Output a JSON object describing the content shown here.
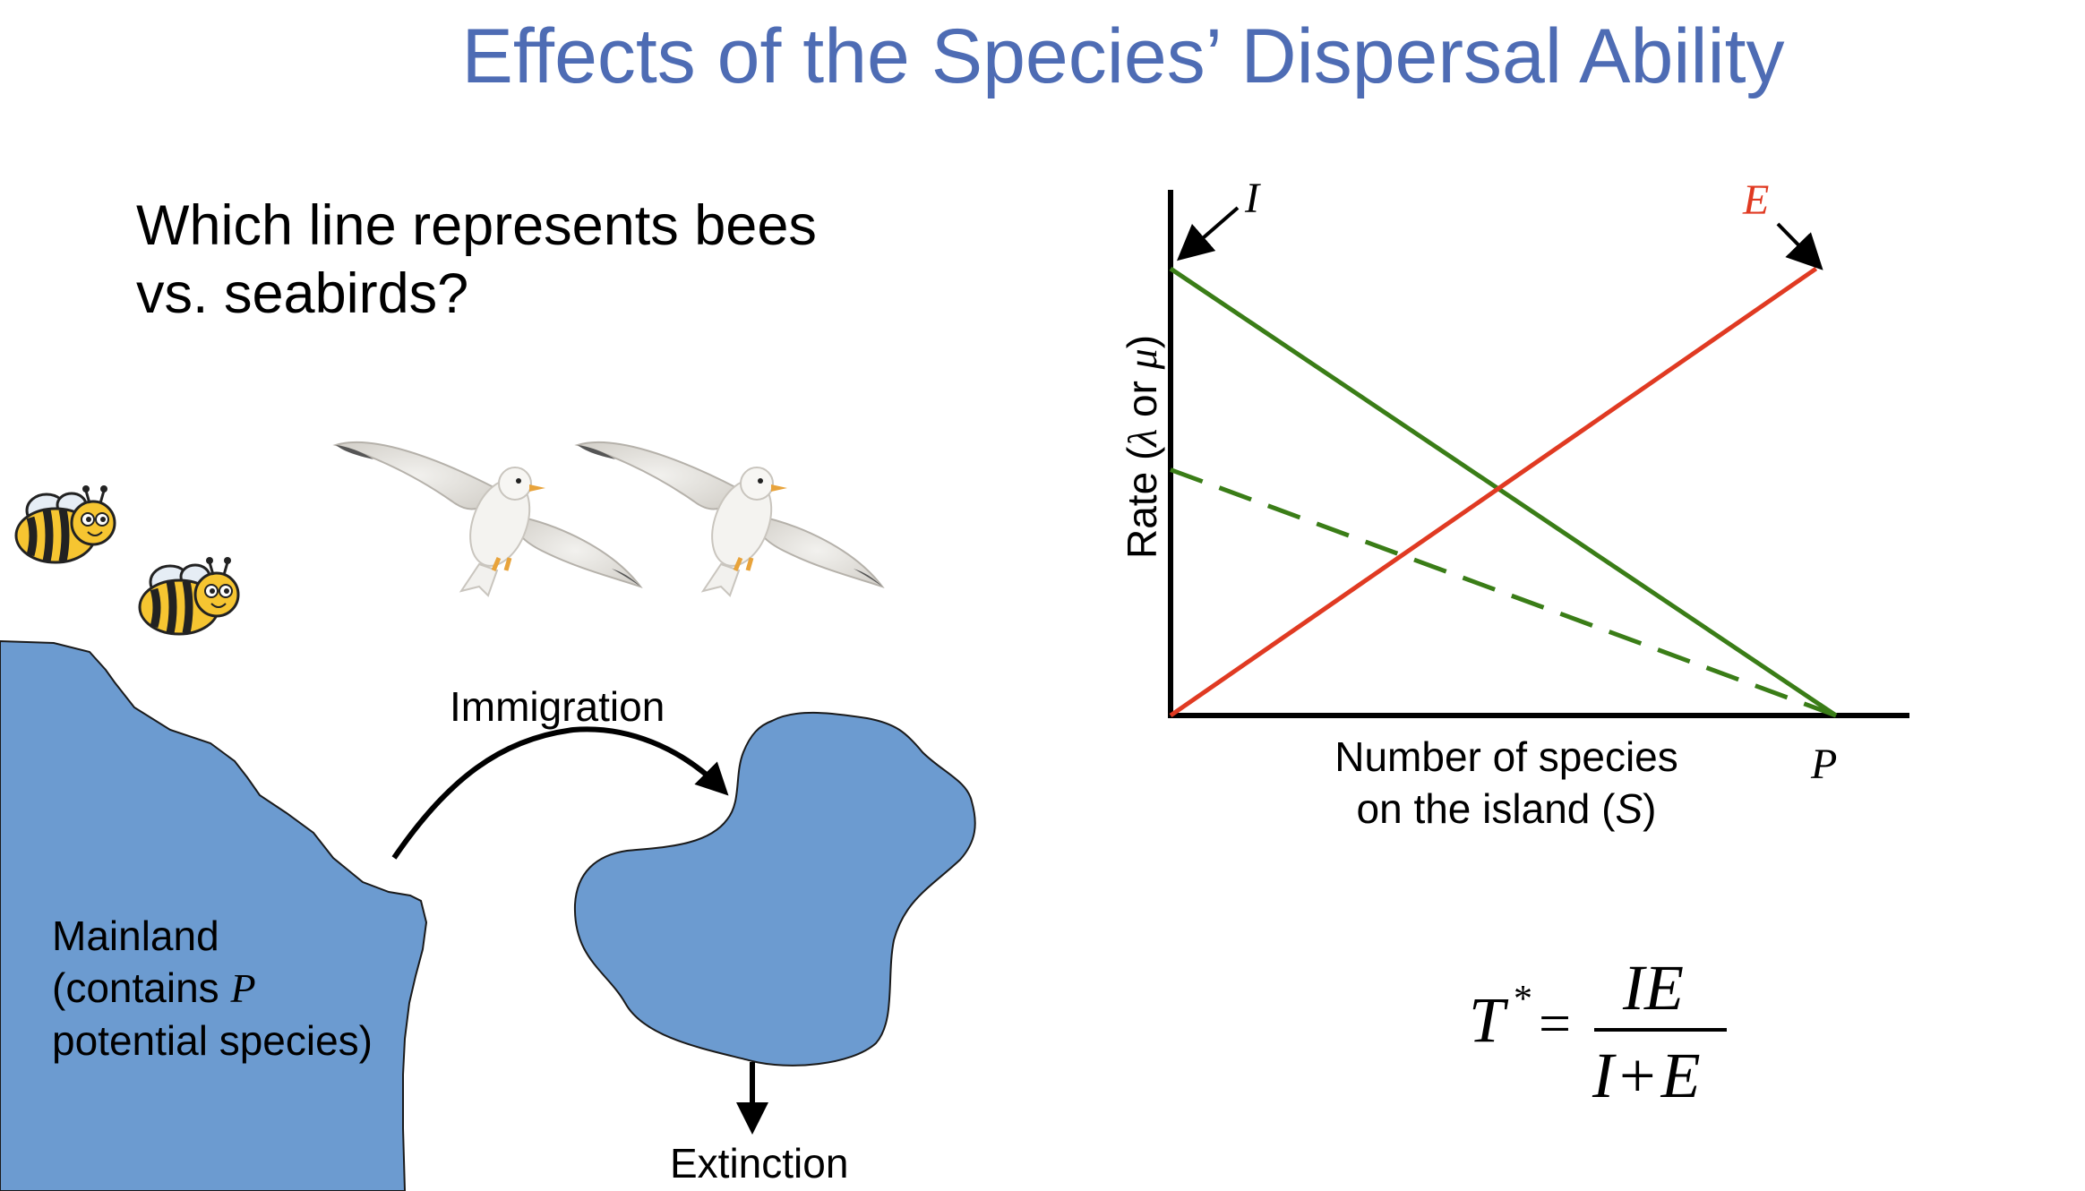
{
  "title": "Effects of the Species’ Dispersal Ability",
  "question": {
    "line1": "Which line represents bees",
    "line2": "vs. seabirds?"
  },
  "diagram": {
    "immigration": "Immigration",
    "extinction": "Extinction",
    "mainland_line1": "Mainland",
    "mainland_line2_pre": "(contains ",
    "mainland_line2_var": "P",
    "mainland_line3": "potential species)",
    "colors": {
      "land": "#6C9BD0",
      "outline": "#1a1a1a"
    }
  },
  "chart": {
    "ylabel_pre": "Rate (",
    "ylabel_lambda": "λ",
    "ylabel_mid": " or ",
    "ylabel_mu": "μ",
    "ylabel_post": ")",
    "xlabel_line1": "Number of species",
    "xlabel_line2_pre": "on the island (",
    "xlabel_line2_var": "S",
    "xlabel_line2_post": ")",
    "label_I": "I",
    "label_E": "E",
    "label_P": "P",
    "colors": {
      "immigration": "#3A7D17",
      "extinction": "#E03A22",
      "axis": "#000000"
    }
  },
  "chart_data": {
    "type": "line",
    "x_range": [
      0,
      1
    ],
    "y_range": [
      0,
      1
    ],
    "series": [
      {
        "values": [
          [
            0,
            1
          ],
          [
            1,
            0
          ]
        ],
        "style": "solid",
        "color": "#3A7D17"
      },
      {
        "values": [
          [
            0,
            0.55
          ],
          [
            1,
            0
          ]
        ],
        "style": "dashed",
        "color": "#3A7D17"
      },
      {
        "values": [
          [
            0,
            0
          ],
          [
            0.97,
            1
          ]
        ],
        "style": "solid",
        "color": "#E03A22"
      }
    ]
  },
  "equation": {
    "lhs": "T",
    "sup": "*",
    "equals": "=",
    "numerator": "IE",
    "den_I": "I",
    "den_plus": "+",
    "den_E": "E"
  }
}
